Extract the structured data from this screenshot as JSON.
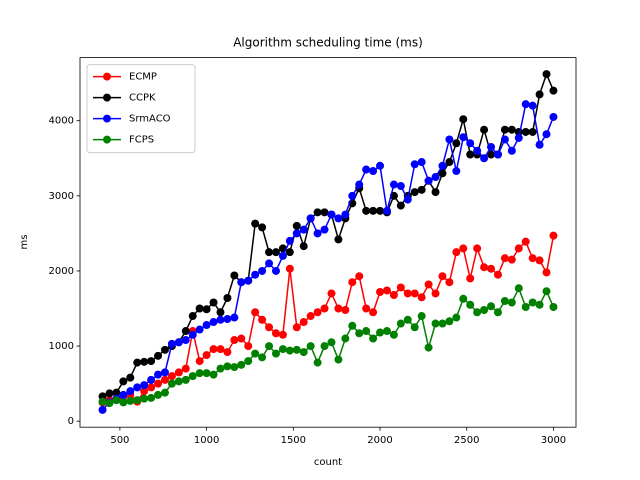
{
  "chart_data": {
    "type": "line",
    "title": "Algorithm scheduling time (ms)",
    "x_label": "count",
    "y_label": "ms",
    "x": [
      400,
      440,
      480,
      520,
      560,
      600,
      640,
      680,
      720,
      760,
      800,
      840,
      880,
      920,
      960,
      1000,
      1040,
      1080,
      1120,
      1160,
      1200,
      1240,
      1280,
      1320,
      1360,
      1400,
      1440,
      1480,
      1520,
      1560,
      1600,
      1640,
      1680,
      1720,
      1760,
      1800,
      1840,
      1880,
      1920,
      1960,
      2000,
      2040,
      2080,
      2120,
      2160,
      2200,
      2240,
      2280,
      2320,
      2360,
      2400,
      2440,
      2480,
      2520,
      2560,
      2600,
      2640,
      2680,
      2720,
      2760,
      2800,
      2840,
      2880,
      2920,
      2960,
      3000
    ],
    "series": [
      {
        "name": "ECMP",
        "color": "#ff0000",
        "values": [
          250,
          280,
          300,
          330,
          350,
          260,
          400,
          450,
          500,
          550,
          600,
          650,
          700,
          1200,
          800,
          880,
          960,
          960,
          920,
          1080,
          1100,
          1000,
          1450,
          1350,
          1250,
          1170,
          1150,
          2030,
          1250,
          1320,
          1400,
          1450,
          1500,
          1700,
          1500,
          1480,
          1850,
          1930,
          1500,
          1450,
          1720,
          1740,
          1680,
          1780,
          1700,
          1700,
          1650,
          1820,
          1700,
          1930,
          1850,
          2250,
          2300,
          1900,
          2300,
          2050,
          2030,
          1950,
          2170,
          2150,
          2300,
          2390,
          2170,
          2140,
          1980,
          2470
        ]
      },
      {
        "name": "CCPK",
        "color": "#000000",
        "values": [
          330,
          370,
          380,
          530,
          580,
          780,
          790,
          800,
          870,
          950,
          1000,
          1050,
          1200,
          1400,
          1500,
          1490,
          1580,
          1450,
          1640,
          1940,
          1850,
          1870,
          2630,
          2580,
          2250,
          2250,
          2300,
          2250,
          2600,
          2330,
          2700,
          2780,
          2780,
          2750,
          2420,
          2700,
          2900,
          3100,
          2800,
          2800,
          2800,
          2780,
          3000,
          2870,
          3000,
          3050,
          3080,
          3200,
          3050,
          3300,
          3450,
          3700,
          4020,
          3550,
          3550,
          3880,
          3550,
          3550,
          3880,
          3880,
          3850,
          3850,
          3850,
          4350,
          4620,
          4400
        ]
      },
      {
        "name": "SrmACO",
        "color": "#0000ff",
        "values": [
          150,
          250,
          300,
          350,
          400,
          450,
          480,
          550,
          620,
          650,
          1030,
          1050,
          1080,
          1150,
          1220,
          1280,
          1320,
          1350,
          1360,
          1380,
          1850,
          1870,
          1950,
          2000,
          2100,
          2000,
          2200,
          2400,
          2500,
          2550,
          2700,
          2500,
          2550,
          2750,
          2700,
          2750,
          3000,
          3150,
          3350,
          3330,
          3400,
          2800,
          3150,
          3130,
          2950,
          3420,
          3450,
          3200,
          3250,
          3400,
          3750,
          3330,
          3780,
          3700,
          3600,
          3500,
          3650,
          3550,
          3750,
          3600,
          3770,
          4220,
          4200,
          3680,
          3820,
          4050
        ]
      },
      {
        "name": "FCPS",
        "color": "#008000",
        "values": [
          260,
          240,
          280,
          250,
          270,
          280,
          300,
          310,
          350,
          380,
          500,
          530,
          550,
          600,
          640,
          640,
          620,
          700,
          730,
          720,
          750,
          800,
          900,
          850,
          1000,
          900,
          960,
          940,
          950,
          920,
          1000,
          780,
          1000,
          1050,
          820,
          1100,
          1270,
          1170,
          1200,
          1100,
          1180,
          1200,
          1150,
          1300,
          1350,
          1250,
          1400,
          980,
          1300,
          1300,
          1330,
          1380,
          1630,
          1550,
          1450,
          1480,
          1530,
          1450,
          1600,
          1580,
          1770,
          1520,
          1580,
          1550,
          1730,
          1520
        ]
      }
    ],
    "xlim": [
      270,
      3130
    ],
    "ylim": [
      -80,
      4840
    ],
    "xticks": [
      500,
      1000,
      1500,
      2000,
      2500,
      3000
    ],
    "yticks": [
      0,
      1000,
      2000,
      3000,
      4000
    ],
    "legend": "upper left"
  }
}
